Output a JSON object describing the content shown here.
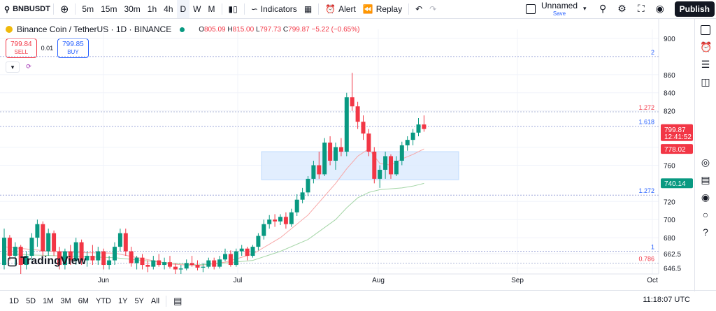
{
  "toolbar": {
    "symbol": "BNBUSDT",
    "intervals": [
      "5m",
      "15m",
      "30m",
      "1h",
      "4h",
      "D",
      "W",
      "M"
    ],
    "active_interval": "D",
    "indicators": "Indicators",
    "alert": "Alert",
    "replay": "Replay",
    "layout_name": "Unnamed",
    "save": "Save",
    "publish": "Publish"
  },
  "legend": {
    "title": "Binance Coin / TetherUS · 1D · BINANCE",
    "open_label": "O",
    "open": "805.09",
    "high_label": "H",
    "high": "815.00",
    "low_label": "L",
    "low": "797.73",
    "close_label": "C",
    "close": "799.87",
    "change": "−5.22 (−0.65%)"
  },
  "trade": {
    "sell_price": "799.84",
    "sell_label": "SELL",
    "spread": "0.01",
    "buy_price": "799.85",
    "buy_label": "BUY"
  },
  "bottom": {
    "ranges": [
      "1D",
      "5D",
      "1M",
      "3M",
      "6M",
      "YTD",
      "1Y",
      "5Y",
      "All"
    ],
    "clock": "11:18:07 UTC"
  },
  "branding": "TradingView",
  "colors": {
    "up": "#089981",
    "down": "#f23645",
    "ma_fast": "#f7a6a6",
    "ma_slow": "#a5d6a7",
    "zone": "#dbeafe",
    "accent": "#2962ff"
  },
  "chart_data": {
    "type": "candlestick",
    "y_ticks": [
      900,
      860,
      840,
      820,
      780,
      760,
      720,
      700,
      680,
      662.5,
      646.5
    ],
    "ylim": [
      640,
      910
    ],
    "x_labels": [
      "Jun",
      "Jul",
      "Aug",
      "Sep",
      "Oct"
    ],
    "price_labels": [
      {
        "value": 799.87,
        "text": "799.87",
        "sub": "12:41:52",
        "color": "#f23645"
      },
      {
        "value": 778.02,
        "text": "778.02",
        "color": "#f23645"
      },
      {
        "value": 740.14,
        "text": "740.14",
        "color": "#089981"
      }
    ],
    "fib_levels": [
      {
        "label": "2",
        "value": 880
      },
      {
        "label": "1.272",
        "value": 819
      },
      {
        "label": "1.618",
        "value": 803
      },
      {
        "label": "1.272",
        "value": 727
      },
      {
        "label": "1",
        "value": 665
      },
      {
        "label": "0.786",
        "value": 652
      }
    ],
    "zone": {
      "from": 744,
      "to": 775
    },
    "candles": [
      [
        650,
        690,
        645,
        680
      ],
      [
        680,
        683,
        655,
        660
      ],
      [
        660,
        675,
        650,
        670
      ],
      [
        670,
        672,
        640,
        650
      ],
      [
        650,
        665,
        645,
        660
      ],
      [
        660,
        685,
        655,
        680
      ],
      [
        680,
        700,
        670,
        695
      ],
      [
        695,
        698,
        660,
        665
      ],
      [
        665,
        690,
        660,
        685
      ],
      [
        685,
        688,
        660,
        665
      ],
      [
        665,
        670,
        645,
        650
      ],
      [
        650,
        668,
        645,
        665
      ],
      [
        665,
        672,
        650,
        655
      ],
      [
        655,
        680,
        650,
        675
      ],
      [
        675,
        678,
        650,
        655
      ],
      [
        655,
        665,
        648,
        660
      ],
      [
        660,
        672,
        650,
        655
      ],
      [
        655,
        670,
        650,
        665
      ],
      [
        665,
        668,
        645,
        650
      ],
      [
        650,
        660,
        645,
        655
      ],
      [
        655,
        675,
        650,
        670
      ],
      [
        670,
        690,
        665,
        685
      ],
      [
        685,
        690,
        660,
        665
      ],
      [
        665,
        670,
        648,
        652
      ],
      [
        652,
        660,
        645,
        658
      ],
      [
        658,
        662,
        645,
        650
      ],
      [
        650,
        655,
        642,
        648
      ],
      [
        648,
        660,
        645,
        655
      ],
      [
        655,
        662,
        648,
        650
      ],
      [
        650,
        658,
        645,
        653
      ],
      [
        653,
        660,
        646,
        648
      ],
      [
        648,
        652,
        640,
        645
      ],
      [
        645,
        650,
        640,
        646
      ],
      [
        646,
        656,
        644,
        652
      ],
      [
        652,
        660,
        648,
        650
      ],
      [
        650,
        655,
        644,
        647
      ],
      [
        647,
        652,
        642,
        648
      ],
      [
        648,
        658,
        646,
        655
      ],
      [
        655,
        658,
        645,
        648
      ],
      [
        648,
        660,
        646,
        656
      ],
      [
        656,
        668,
        654,
        662
      ],
      [
        662,
        666,
        648,
        650
      ],
      [
        650,
        668,
        648,
        665
      ],
      [
        665,
        672,
        660,
        668
      ],
      [
        668,
        670,
        655,
        660
      ],
      [
        660,
        672,
        658,
        670
      ],
      [
        670,
        685,
        666,
        682
      ],
      [
        682,
        700,
        678,
        695
      ],
      [
        695,
        705,
        690,
        700
      ],
      [
        700,
        706,
        692,
        698
      ],
      [
        698,
        706,
        694,
        703
      ],
      [
        703,
        708,
        690,
        695
      ],
      [
        695,
        712,
        692,
        708
      ],
      [
        708,
        728,
        704,
        722
      ],
      [
        722,
        735,
        718,
        730
      ],
      [
        730,
        748,
        726,
        745
      ],
      [
        745,
        765,
        740,
        760
      ],
      [
        760,
        775,
        745,
        750
      ],
      [
        750,
        790,
        748,
        785
      ],
      [
        785,
        792,
        760,
        765
      ],
      [
        765,
        785,
        755,
        780
      ],
      [
        780,
        790,
        770,
        775
      ],
      [
        775,
        840,
        770,
        835
      ],
      [
        835,
        862,
        820,
        825
      ],
      [
        825,
        830,
        800,
        808
      ],
      [
        808,
        815,
        788,
        795
      ],
      [
        795,
        800,
        770,
        775
      ],
      [
        775,
        780,
        740,
        745
      ],
      [
        745,
        760,
        735,
        755
      ],
      [
        755,
        775,
        745,
        770
      ],
      [
        770,
        772,
        745,
        750
      ],
      [
        750,
        770,
        748,
        765
      ],
      [
        765,
        786,
        760,
        782
      ],
      [
        782,
        792,
        776,
        788
      ],
      [
        788,
        800,
        782,
        796
      ],
      [
        796,
        812,
        792,
        805
      ],
      [
        805,
        815,
        797,
        800
      ]
    ],
    "ma_fast": [
      [
        0,
        670
      ],
      [
        10,
        664
      ],
      [
        20,
        663
      ],
      [
        30,
        651
      ],
      [
        35,
        649
      ],
      [
        40,
        653
      ],
      [
        45,
        662
      ],
      [
        50,
        680
      ],
      [
        55,
        705
      ],
      [
        60,
        740
      ],
      [
        62,
        756
      ],
      [
        64,
        770
      ],
      [
        66,
        778
      ],
      [
        68,
        762
      ],
      [
        70,
        760
      ],
      [
        72,
        767
      ],
      [
        74,
        772
      ],
      [
        76,
        778
      ]
    ],
    "ma_slow": [
      [
        0,
        662
      ],
      [
        10,
        660
      ],
      [
        20,
        658
      ],
      [
        30,
        652
      ],
      [
        35,
        650
      ],
      [
        40,
        652
      ],
      [
        45,
        655
      ],
      [
        50,
        665
      ],
      [
        55,
        678
      ],
      [
        60,
        700
      ],
      [
        62,
        713
      ],
      [
        64,
        724
      ],
      [
        66,
        730
      ],
      [
        68,
        733
      ],
      [
        70,
        734
      ],
      [
        72,
        735
      ],
      [
        74,
        737
      ],
      [
        76,
        740
      ]
    ]
  }
}
